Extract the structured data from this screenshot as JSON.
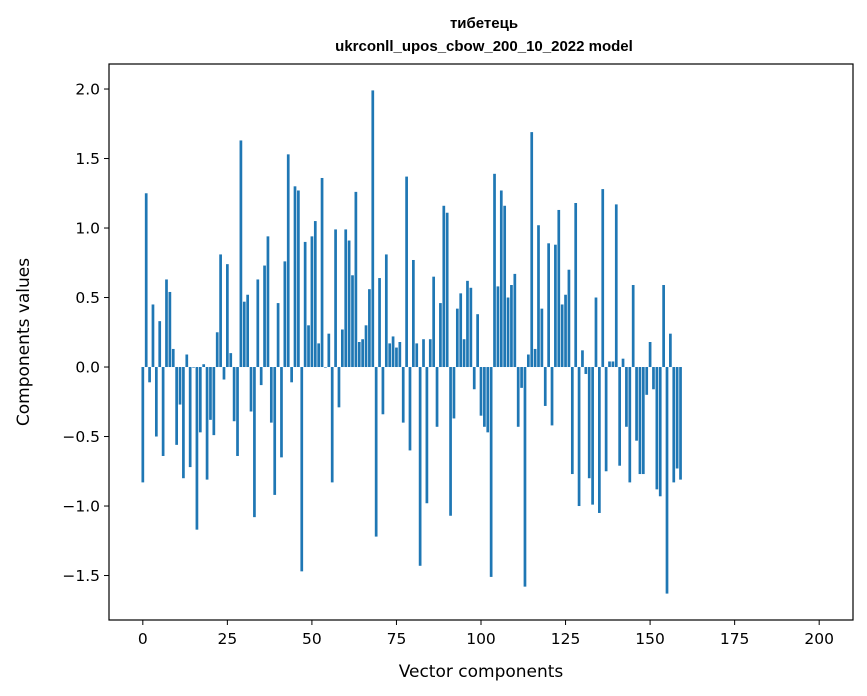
{
  "chart_data": {
    "type": "bar",
    "title_line1": "тибетець",
    "title_line2": "ukrconll_upos_cbow_200_10_2022 model",
    "xlabel": "Vector components",
    "ylabel": "Components values",
    "xlim": [
      -10,
      210
    ],
    "ylim": [
      -1.82,
      2.18
    ],
    "xticks": [
      0,
      25,
      50,
      75,
      100,
      125,
      150,
      175,
      200
    ],
    "xtick_labels": [
      "0",
      "25",
      "50",
      "75",
      "100",
      "125",
      "150",
      "175",
      "200"
    ],
    "yticks": [
      2.0,
      1.5,
      1.0,
      0.5,
      0.0,
      -0.5,
      -1.0,
      -1.5
    ],
    "ytick_labels": [
      "2.0",
      "1.5",
      "1.0",
      "0.5",
      "0.0",
      "−0.5",
      "−1.0",
      "−1.5"
    ],
    "bar_color": "#1f77b4",
    "grid": false,
    "values": [
      -0.83,
      1.25,
      -0.11,
      0.45,
      -0.5,
      0.33,
      -0.64,
      0.63,
      0.54,
      0.13,
      -0.56,
      -0.27,
      -0.8,
      0.09,
      -0.72,
      0.0,
      -1.17,
      -0.47,
      0.02,
      -0.81,
      -0.38,
      -0.49,
      0.25,
      0.81,
      -0.09,
      0.74,
      0.1,
      -0.39,
      -0.64,
      1.63,
      0.47,
      0.52,
      -0.32,
      -1.08,
      0.63,
      -0.13,
      0.73,
      0.94,
      -0.4,
      -0.92,
      0.46,
      -0.65,
      0.76,
      1.53,
      -0.11,
      1.3,
      1.27,
      -1.47,
      0.9,
      0.3,
      0.94,
      1.05,
      0.17,
      1.36,
      0.0,
      0.24,
      -0.83,
      0.99,
      -0.29,
      0.27,
      0.99,
      0.91,
      0.66,
      1.26,
      0.18,
      0.2,
      0.3,
      0.56,
      1.99,
      -1.22,
      0.64,
      -0.34,
      0.81,
      0.17,
      0.22,
      0.14,
      0.18,
      -0.4,
      1.37,
      -0.6,
      0.77,
      0.17,
      -1.43,
      0.2,
      -0.98,
      0.2,
      0.65,
      -0.43,
      0.46,
      1.16,
      1.11,
      -1.07,
      -0.37,
      0.42,
      0.53,
      0.2,
      0.62,
      0.57,
      -0.16,
      0.38,
      -0.35,
      -0.43,
      -0.47,
      -1.51,
      1.39,
      0.58,
      1.27,
      1.16,
      0.5,
      0.59,
      0.67,
      -0.43,
      -0.15,
      -1.58,
      0.09,
      1.69,
      0.13,
      1.02,
      0.42,
      -0.28,
      0.89,
      -0.42,
      0.88,
      1.13,
      0.45,
      0.52,
      0.7,
      -0.77,
      1.18,
      -1.0,
      0.12,
      -0.05,
      -0.8,
      -0.99,
      0.5,
      -1.05,
      1.28,
      -0.75,
      0.04,
      0.04,
      1.17,
      -0.71,
      0.06,
      -0.43,
      -0.83,
      0.59,
      -0.53,
      -0.77,
      -0.77,
      -0.2,
      0.18,
      -0.16,
      -0.88,
      -0.93,
      0.59,
      -1.63,
      0.24,
      -0.83,
      -0.73,
      -0.81
    ]
  }
}
